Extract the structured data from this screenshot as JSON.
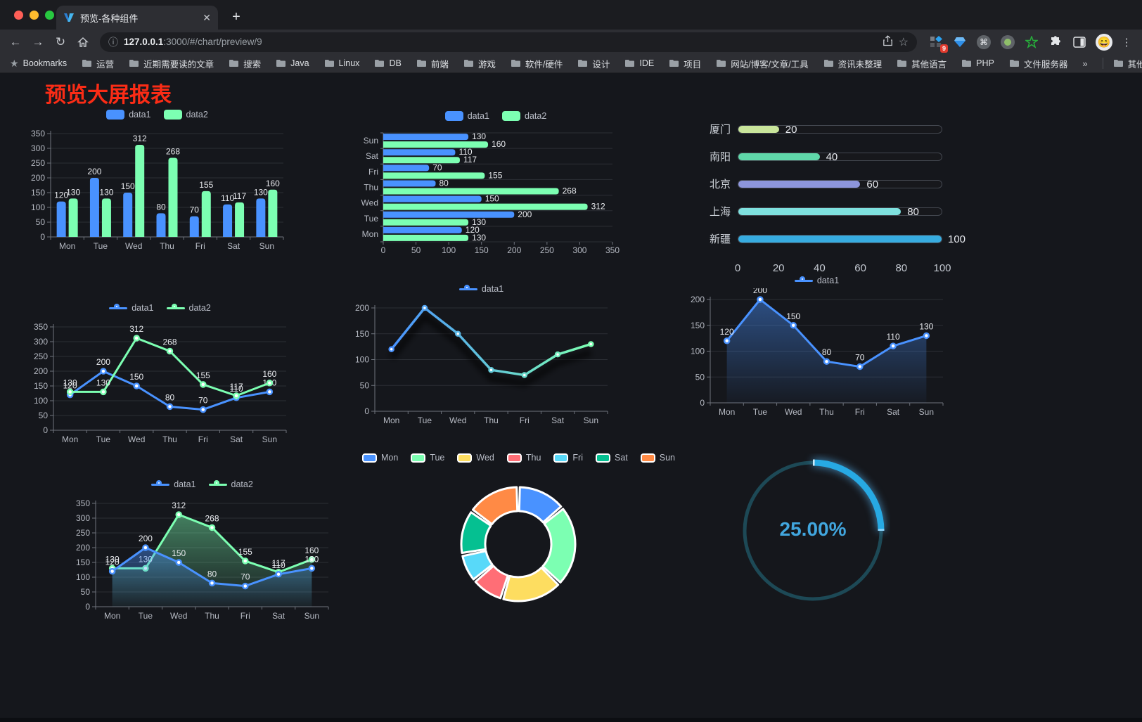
{
  "browser": {
    "tab_title": "预览-各种组件",
    "close_glyph": "✕",
    "newtab_glyph": "+",
    "back_glyph": "←",
    "forward_glyph": "→",
    "reload_glyph": "↻",
    "info_glyph": "ⓘ",
    "star_glyph": "☆",
    "kebab_glyph": "⋮",
    "cmd_glyph": "⌘",
    "avatar_glyph": "😄",
    "url_host": "127.0.0.1",
    "url_rest": ":3000/#/chart/preview/9",
    "extension_badge": "9",
    "bookmarks_root": "Bookmarks",
    "bookmarks": [
      "运营",
      "近期需要读的文章",
      "搜索",
      "Java",
      "Linux",
      "DB",
      "前端",
      "游戏",
      "软件/硬件",
      "设计",
      "IDE",
      "项目",
      "网站/博客/文章/工具",
      "资讯未整理",
      "其他语言",
      "PHP",
      "文件服务器"
    ],
    "overflow_glyph": "»",
    "other_bookmarks": "其他书签"
  },
  "page": {
    "title": "预览大屏报表"
  },
  "theme": {
    "data1_color": "#4992ff",
    "data2_color": "#7cffb2",
    "grid_color": "#2c2f35",
    "axis_color": "#6e737c",
    "tick_text": "#b6bac3",
    "label_text": "#e8eaee"
  },
  "chart_data": [
    {
      "slot": "c1",
      "type": "bar",
      "legend_style": "rect",
      "categories": [
        "Mon",
        "Tue",
        "Wed",
        "Thu",
        "Fri",
        "Sat",
        "Sun"
      ],
      "series": [
        {
          "name": "data1",
          "color": "#4992ff",
          "values": [
            120,
            200,
            150,
            80,
            70,
            110,
            130
          ]
        },
        {
          "name": "data2",
          "color": "#7cffb2",
          "values": [
            130,
            130,
            312,
            268,
            155,
            117,
            160
          ]
        }
      ],
      "ylim": [
        0,
        350
      ],
      "yticks": [
        0,
        50,
        100,
        150,
        200,
        250,
        300,
        350
      ],
      "labels": true
    },
    {
      "slot": "c2",
      "type": "bar-horizontal",
      "legend_style": "rect",
      "categories": [
        "Mon",
        "Tue",
        "Wed",
        "Thu",
        "Fri",
        "Sat",
        "Sun"
      ],
      "series": [
        {
          "name": "data1",
          "color": "#4992ff",
          "values": [
            120,
            200,
            150,
            80,
            70,
            110,
            130
          ]
        },
        {
          "name": "data2",
          "color": "#7cffb2",
          "values": [
            130,
            130,
            312,
            268,
            155,
            117,
            160
          ]
        }
      ],
      "xlim": [
        0,
        350
      ],
      "xticks": [
        0,
        50,
        100,
        150,
        200,
        250,
        300,
        350
      ],
      "labels": true
    },
    {
      "slot": "c3",
      "type": "progress",
      "items": [
        {
          "label": "厦门",
          "value": 20,
          "color": "#c9e59b"
        },
        {
          "label": "南阳",
          "value": 40,
          "color": "#5fd7a9"
        },
        {
          "label": "北京",
          "value": 60,
          "color": "#8d96dc"
        },
        {
          "label": "上海",
          "value": 80,
          "color": "#7fe1df"
        },
        {
          "label": "新疆",
          "value": 100,
          "color": "#37ace0"
        }
      ],
      "xticks": [
        0,
        20,
        40,
        60,
        80,
        100
      ]
    },
    {
      "slot": "c4",
      "type": "line",
      "legend_style": "dot",
      "categories": [
        "Mon",
        "Tue",
        "Wed",
        "Thu",
        "Fri",
        "Sat",
        "Sun"
      ],
      "series": [
        {
          "name": "data1",
          "color": "#4992ff",
          "values": [
            120,
            200,
            150,
            80,
            70,
            110,
            130
          ]
        },
        {
          "name": "data2",
          "color": "#7cffb2",
          "values": [
            130,
            130,
            312,
            268,
            155,
            117,
            160
          ]
        }
      ],
      "ylim": [
        0,
        350
      ],
      "yticks": [
        0,
        50,
        100,
        150,
        200,
        250,
        300,
        350
      ],
      "labels": true
    },
    {
      "slot": "c5",
      "type": "line-gradient",
      "legend_style": "dot",
      "categories": [
        "Mon",
        "Tue",
        "Wed",
        "Thu",
        "Fri",
        "Sat",
        "Sun"
      ],
      "series": [
        {
          "name": "data1",
          "gradient": [
            "#4992ff",
            "#7cffb2"
          ],
          "color": "#4992ff",
          "values": [
            120,
            200,
            150,
            80,
            70,
            110,
            130
          ]
        }
      ],
      "ylim": [
        0,
        200
      ],
      "yticks": [
        0,
        50,
        100,
        150,
        200
      ],
      "labels": false
    },
    {
      "slot": "c6",
      "type": "area",
      "legend_style": "dot",
      "categories": [
        "Mon",
        "Tue",
        "Wed",
        "Thu",
        "Fri",
        "Sat",
        "Sun"
      ],
      "series": [
        {
          "name": "data1",
          "color": "#4992ff",
          "values": [
            120,
            200,
            150,
            80,
            70,
            110,
            130
          ]
        }
      ],
      "ylim": [
        0,
        200
      ],
      "yticks": [
        0,
        50,
        100,
        150,
        200
      ],
      "labels": true
    },
    {
      "slot": "c7",
      "type": "area",
      "legend_style": "dot",
      "categories": [
        "Mon",
        "Tue",
        "Wed",
        "Thu",
        "Fri",
        "Sat",
        "Sun"
      ],
      "series": [
        {
          "name": "data1",
          "color": "#4992ff",
          "values": [
            120,
            200,
            150,
            80,
            70,
            110,
            130
          ]
        },
        {
          "name": "data2",
          "color": "#7cffb2",
          "values": [
            130,
            130,
            312,
            268,
            155,
            117,
            160
          ]
        }
      ],
      "ylim": [
        0,
        350
      ],
      "yticks": [
        0,
        50,
        100,
        150,
        200,
        250,
        300,
        350
      ],
      "labels": true
    },
    {
      "slot": "c8",
      "type": "doughnut",
      "categories": [
        "Mon",
        "Tue",
        "Wed",
        "Thu",
        "Fri",
        "Sat",
        "Sun"
      ],
      "values": [
        120,
        200,
        150,
        80,
        70,
        110,
        130
      ],
      "colors": [
        "#4992ff",
        "#7cffb2",
        "#fddd60",
        "#ff6e76",
        "#58d9f9",
        "#05c091",
        "#ff8a45"
      ]
    },
    {
      "slot": "c9",
      "type": "gauge",
      "value": 25,
      "display": "25.00%",
      "color": "#27a9e3",
      "track": "#1d4956",
      "text_color": "#41a6de"
    }
  ]
}
